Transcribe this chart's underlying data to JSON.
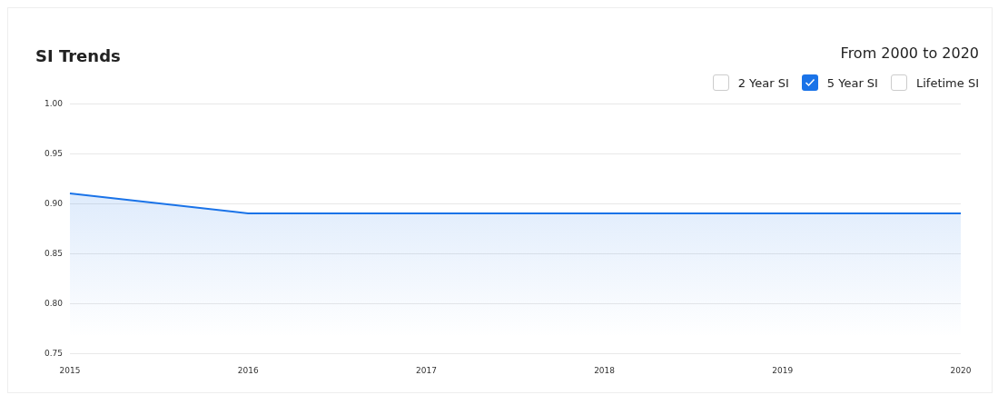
{
  "chart_data": {
    "type": "area",
    "title": "SI Trends",
    "subtitle": "From 2000 to 2020",
    "categories": [
      "2015",
      "2016",
      "2017",
      "2018",
      "2019",
      "2020"
    ],
    "series": [
      {
        "name": "2 Year SI",
        "values": [
          null,
          null,
          null,
          null,
          null,
          null
        ]
      },
      {
        "name": "5 Year SI",
        "color": "#1a73e8",
        "values": [
          0.91,
          0.89,
          0.89,
          0.89,
          0.89,
          0.89
        ]
      },
      {
        "name": "Lifetime SI",
        "values": [
          null,
          null,
          null,
          null,
          null,
          null
        ]
      }
    ],
    "ylim": [
      0.75,
      1.0
    ],
    "yticks": [
      0.75,
      {
        "value": 0.8,
        "label": "0.80"
      },
      0.85,
      {
        "value": 0.9,
        "label": "0.90"
      },
      0.95,
      {
        "value": 1.0,
        "label": "1.00"
      }
    ],
    "grid": "y",
    "legend": "top right"
  }
}
